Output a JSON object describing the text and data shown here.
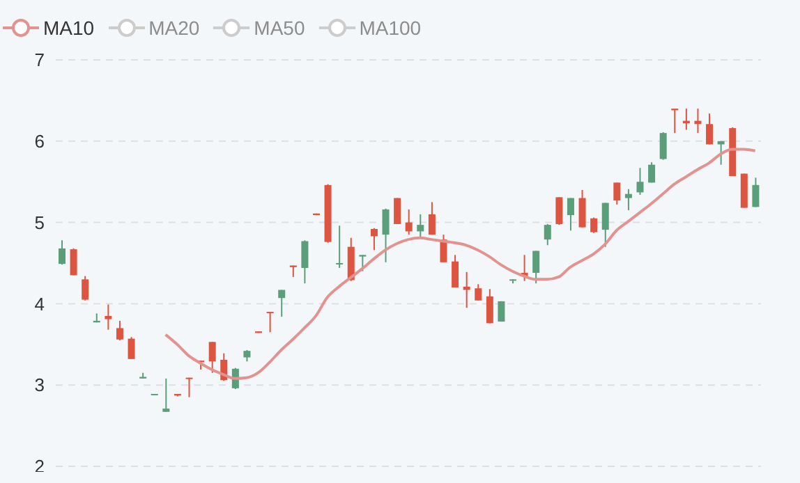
{
  "chart_data": {
    "type": "candlestick",
    "categories": [
      null,
      null,
      null,
      null,
      null,
      null,
      null,
      null,
      null,
      null,
      null,
      null,
      null,
      null,
      null,
      null,
      null,
      null,
      null,
      null,
      null,
      null,
      null,
      null,
      null,
      null,
      null,
      null,
      null,
      null,
      null,
      null,
      null,
      null,
      null,
      null,
      null,
      null,
      null,
      null,
      null,
      null,
      null,
      null,
      null,
      null,
      null,
      null,
      null,
      null,
      null,
      null,
      null,
      null,
      null,
      null,
      null,
      null,
      null,
      null,
      null
    ],
    "series": [
      {
        "ohlc": [
          [
            4.49,
            4.78,
            4.48,
            4.68
          ],
          [
            4.67,
            4.68,
            4.35,
            4.35
          ],
          [
            4.3,
            4.34,
            4.04,
            4.05
          ],
          [
            3.77,
            3.88,
            3.77,
            3.79
          ],
          [
            3.85,
            3.99,
            3.68,
            3.81
          ],
          [
            3.7,
            3.79,
            3.55,
            3.56
          ],
          [
            3.57,
            3.59,
            3.32,
            3.32
          ],
          [
            3.08,
            3.15,
            3.08,
            3.1
          ],
          [
            2.88,
            2.89,
            2.88,
            2.89
          ],
          [
            2.67,
            3.08,
            2.67,
            2.71
          ],
          [
            2.89,
            2.89,
            2.86,
            2.87
          ],
          [
            3.09,
            3.09,
            2.85,
            3.08
          ],
          [
            3.3,
            3.3,
            3.19,
            3.28
          ],
          [
            3.53,
            3.53,
            3.15,
            3.29
          ],
          [
            3.31,
            3.39,
            3.05,
            3.06
          ],
          [
            2.96,
            3.21,
            2.95,
            3.2
          ],
          [
            3.34,
            3.43,
            3.29,
            3.42
          ],
          [
            3.66,
            3.66,
            3.64,
            3.64
          ],
          [
            3.9,
            3.9,
            3.65,
            3.89
          ],
          [
            4.07,
            4.17,
            3.84,
            4.17
          ],
          [
            4.47,
            4.47,
            4.33,
            4.45
          ],
          [
            4.44,
            4.78,
            4.25,
            4.77
          ],
          [
            5.11,
            5.11,
            5.09,
            5.09
          ],
          [
            5.46,
            5.47,
            4.75,
            4.76
          ],
          [
            4.49,
            4.96,
            4.44,
            4.5
          ],
          [
            4.7,
            4.81,
            4.28,
            4.29
          ],
          [
            4.58,
            4.6,
            4.4,
            4.6
          ],
          [
            4.92,
            4.93,
            4.66,
            4.83
          ],
          [
            4.85,
            5.17,
            4.51,
            5.16
          ],
          [
            5.3,
            5.3,
            4.98,
            4.98
          ],
          [
            5.0,
            5.16,
            4.85,
            4.89
          ],
          [
            4.89,
            5.1,
            4.81,
            4.97
          ],
          [
            5.1,
            5.25,
            4.85,
            4.85
          ],
          [
            4.79,
            4.85,
            4.51,
            4.51
          ],
          [
            4.52,
            4.6,
            4.2,
            4.2
          ],
          [
            4.21,
            4.39,
            3.95,
            4.17
          ],
          [
            4.19,
            4.24,
            4.04,
            4.04
          ],
          [
            4.09,
            4.18,
            3.76,
            3.76
          ],
          [
            3.78,
            4.03,
            3.78,
            4.03
          ],
          [
            4.29,
            4.3,
            4.25,
            4.3
          ],
          [
            4.38,
            4.6,
            4.28,
            4.34
          ],
          [
            4.38,
            4.65,
            4.25,
            4.65
          ],
          [
            4.79,
            4.98,
            4.72,
            4.97
          ],
          [
            5.31,
            5.31,
            4.97,
            4.98
          ],
          [
            5.09,
            5.3,
            4.9,
            5.3
          ],
          [
            5.3,
            5.4,
            4.94,
            4.94
          ],
          [
            5.05,
            5.06,
            4.87,
            4.88
          ],
          [
            4.91,
            5.24,
            4.7,
            5.24
          ],
          [
            5.49,
            5.49,
            5.22,
            5.27
          ],
          [
            5.3,
            5.41,
            5.15,
            5.35
          ],
          [
            5.37,
            5.67,
            5.34,
            5.5
          ],
          [
            5.49,
            5.74,
            5.49,
            5.71
          ],
          [
            5.78,
            6.11,
            5.77,
            6.1
          ],
          [
            6.4,
            6.4,
            6.1,
            6.38
          ],
          [
            6.25,
            6.4,
            6.14,
            6.22
          ],
          [
            6.25,
            6.4,
            6.1,
            6.21
          ],
          [
            6.21,
            6.34,
            5.96,
            5.96
          ],
          [
            5.96,
            6.0,
            5.71,
            6.0
          ],
          [
            6.16,
            6.17,
            5.57,
            5.57
          ],
          [
            5.6,
            5.6,
            5.18,
            5.18
          ],
          [
            5.19,
            5.55,
            5.19,
            5.46
          ]
        ],
        "colors": [
          "#5b9e7a",
          "#dd5540",
          "#dd5540",
          "#5b9e7a",
          "#dd5540",
          "#dd5540",
          "#dd5540",
          "#5b9e7a",
          "#5b9e7a",
          "#5b9e7a",
          "#dd5540",
          "#dd5540",
          "#dd5540",
          "#dd5540",
          "#dd5540",
          "#5b9e7a",
          "#5b9e7a",
          "#dd5540",
          "#dd5540",
          "#5b9e7a",
          "#dd5540",
          "#5b9e7a",
          "#dd5540",
          "#dd5540",
          "#5b9e7a",
          "#dd5540",
          "#5b9e7a",
          "#dd5540",
          "#5b9e7a",
          "#dd5540",
          "#dd5540",
          "#5b9e7a",
          "#dd5540",
          "#dd5540",
          "#dd5540",
          "#dd5540",
          "#dd5540",
          "#dd5540",
          "#5b9e7a",
          "#5b9e7a",
          "#dd5540",
          "#5b9e7a",
          "#5b9e7a",
          "#dd5540",
          "#5b9e7a",
          "#dd5540",
          "#dd5540",
          "#5b9e7a",
          "#dd5540",
          "#5b9e7a",
          "#5b9e7a",
          "#5b9e7a",
          "#5b9e7a",
          "#dd5540",
          "#dd5540",
          "#dd5540",
          "#dd5540",
          "#5b9e7a",
          "#dd5540",
          "#dd5540",
          "#5b9e7a"
        ]
      },
      {
        "type": "line",
        "name": "MA10",
        "color": "#e3938f",
        "values": [
          null,
          null,
          null,
          null,
          null,
          null,
          null,
          null,
          null,
          3.62,
          3.5,
          3.36,
          3.27,
          3.19,
          3.13,
          3.08,
          3.09,
          3.15,
          3.28,
          3.43,
          3.56,
          3.7,
          3.85,
          4.08,
          4.21,
          4.32,
          4.43,
          4.55,
          4.66,
          4.74,
          4.79,
          4.81,
          4.79,
          4.77,
          4.75,
          4.72,
          4.66,
          4.58,
          4.48,
          4.4,
          4.34,
          4.3,
          4.3,
          4.33,
          4.45,
          4.53,
          4.61,
          4.73,
          4.9,
          5.01,
          5.12,
          5.23,
          5.35,
          5.47,
          5.56,
          5.65,
          5.73,
          5.84,
          5.9,
          5.9,
          5.88
        ]
      },
      {
        "type": "line",
        "name": "MA20",
        "color": "#cccccc",
        "values": [
          null,
          null,
          null,
          null,
          null,
          null,
          null,
          null,
          null,
          null,
          null,
          null,
          null,
          null,
          null,
          null,
          null,
          null,
          null,
          null,
          null,
          null,
          null,
          null,
          null,
          null,
          null,
          null,
          null,
          null,
          null,
          null,
          null,
          null,
          null,
          null,
          null,
          null,
          null,
          null,
          null,
          null,
          null,
          null,
          null,
          null,
          null,
          null,
          null,
          null,
          null,
          null,
          null,
          null,
          null,
          null,
          null,
          null,
          null,
          null,
          null
        ]
      },
      {
        "type": "line",
        "name": "MA50",
        "color": "#cccccc",
        "values": [
          null,
          null,
          null,
          null,
          null,
          null,
          null,
          null,
          null,
          null,
          null,
          null,
          null,
          null,
          null,
          null,
          null,
          null,
          null,
          null,
          null,
          null,
          null,
          null,
          null,
          null,
          null,
          null,
          null,
          null,
          null,
          null,
          null,
          null,
          null,
          null,
          null,
          null,
          null,
          null,
          null,
          null,
          null,
          null,
          null,
          null,
          null,
          null,
          null,
          null,
          null,
          null,
          null,
          null,
          null,
          null,
          null,
          null,
          null,
          null,
          null
        ]
      },
      {
        "type": "line",
        "name": "MA100",
        "color": "#cccccc",
        "values": [
          null,
          null,
          null,
          null,
          null,
          null,
          null,
          null,
          null,
          null,
          null,
          null,
          null,
          null,
          null,
          null,
          null,
          null,
          null,
          null,
          null,
          null,
          null,
          null,
          null,
          null,
          null,
          null,
          null,
          null,
          null,
          null,
          null,
          null,
          null,
          null,
          null,
          null,
          null,
          null,
          null,
          null,
          null,
          null,
          null,
          null,
          null,
          null,
          null,
          null,
          null,
          null,
          null,
          null,
          null,
          null,
          null,
          null,
          null,
          null,
          null
        ]
      }
    ],
    "ylim": [
      2,
      7
    ],
    "yticks": [
      2,
      3,
      4,
      5,
      6,
      7
    ],
    "grid": "y",
    "legend": "top left",
    "tick_labels": "y"
  }
}
